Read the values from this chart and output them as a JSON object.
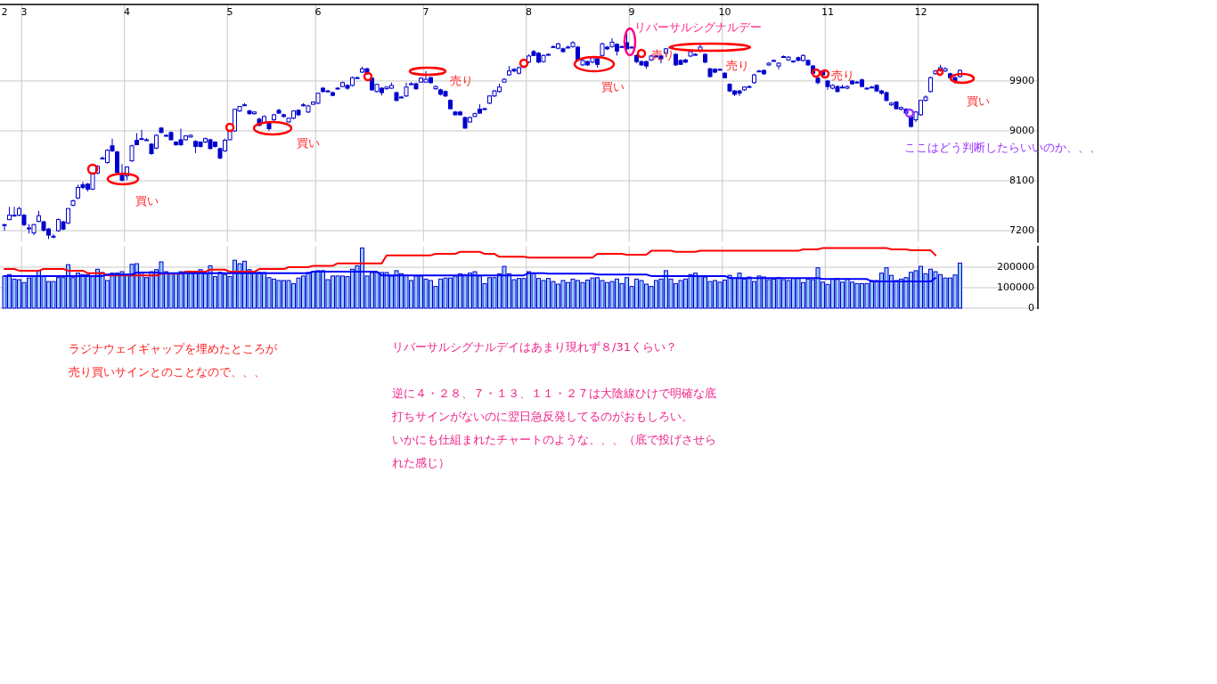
{
  "chart_data": [
    {
      "type": "candlestick",
      "categories": [
        "2",
        null,
        null,
        null,
        "3",
        null,
        null,
        null,
        null,
        null,
        null,
        null,
        null,
        null,
        null,
        null,
        null,
        null,
        null,
        null,
        null,
        null,
        null,
        null,
        null,
        "4",
        null,
        null,
        null,
        null,
        null,
        null,
        null,
        null,
        null,
        null,
        null,
        null,
        null,
        null,
        null,
        null,
        null,
        null,
        null,
        null,
        "5",
        null,
        null,
        null,
        null,
        null,
        null,
        null,
        null,
        null,
        null,
        null,
        null,
        null,
        null,
        null,
        null,
        null,
        "6",
        null,
        null,
        null,
        null,
        null,
        null,
        null,
        null,
        null,
        null,
        null,
        null,
        null,
        null,
        null,
        null,
        null,
        null,
        null,
        null,
        null,
        "7",
        null,
        null,
        null,
        null,
        null,
        null,
        null,
        null,
        null,
        null,
        null,
        null,
        null,
        null,
        null,
        null,
        null,
        null,
        null,
        null,
        "8",
        null,
        null,
        null,
        null,
        null,
        null,
        null,
        null,
        null,
        null,
        null,
        null,
        null,
        null,
        null,
        null,
        null,
        null,
        null,
        null,
        "9",
        null,
        null,
        null,
        null,
        null,
        null,
        null,
        null,
        null,
        null,
        null,
        null,
        null,
        null,
        null,
        null,
        null,
        null,
        "10",
        null,
        null,
        null,
        null,
        null,
        null,
        null,
        null,
        null,
        null,
        null,
        null,
        null,
        null,
        null,
        null,
        null,
        null,
        null,
        null,
        "11",
        null,
        null,
        null,
        null,
        null,
        null,
        null,
        null,
        null,
        null,
        null,
        null,
        null,
        null,
        null,
        null,
        null,
        null,
        "12",
        null,
        null,
        null,
        null,
        null,
        null,
        null,
        null
      ],
      "ohlc": [
        [
          7310,
          7320,
          7200,
          7300
        ],
        [
          7400,
          7630,
          7390,
          7480
        ],
        [
          7480,
          7630,
          7460,
          7480
        ],
        [
          7480,
          7630,
          7460,
          7600
        ],
        [
          7480,
          7500,
          7280,
          7310
        ],
        [
          7240,
          7320,
          7150,
          7250
        ],
        [
          7160,
          7320,
          7120,
          7310
        ],
        [
          7370,
          7560,
          7350,
          7470
        ],
        [
          7360,
          7380,
          7180,
          7210
        ],
        [
          7230,
          7250,
          7050,
          7120
        ],
        [
          7100,
          7140,
          7060,
          7100
        ],
        [
          7200,
          7420,
          7180,
          7400
        ],
        [
          7360,
          7380,
          7210,
          7230
        ],
        [
          7340,
          7600,
          7320,
          7600
        ],
        [
          7660,
          7760,
          7640,
          7740
        ],
        [
          7790,
          8030,
          7770,
          7980
        ],
        [
          8030,
          8080,
          7950,
          7980
        ],
        [
          8040,
          8060,
          7910,
          7950
        ],
        [
          7950,
          8240,
          7930,
          8240
        ],
        [
          8240,
          8380,
          8220,
          8360
        ],
        [
          8510,
          8540,
          8490,
          8510
        ],
        [
          8430,
          8670,
          8410,
          8650
        ],
        [
          8730,
          8860,
          8620,
          8640
        ],
        [
          8620,
          8640,
          8230,
          8250
        ],
        [
          8200,
          8400,
          8090,
          8110
        ],
        [
          8190,
          8360,
          8110,
          8350
        ],
        [
          8460,
          8750,
          8440,
          8730
        ],
        [
          8830,
          8960,
          8750,
          8750
        ],
        [
          8860,
          9020,
          8840,
          8860
        ],
        [
          8840,
          8870,
          8830,
          8840
        ],
        [
          8760,
          8780,
          8570,
          8590
        ],
        [
          8690,
          8940,
          8670,
          8920
        ],
        [
          9050,
          9070,
          8960,
          8970
        ],
        [
          8920,
          8940,
          8900,
          8920
        ],
        [
          8970,
          8990,
          8830,
          8840
        ],
        [
          8800,
          8810,
          8730,
          8750
        ],
        [
          8840,
          9040,
          8730,
          8750
        ],
        [
          8840,
          8920,
          8830,
          8910
        ],
        [
          8890,
          8940,
          8880,
          8920
        ],
        [
          8810,
          8830,
          8600,
          8720
        ],
        [
          8800,
          8810,
          8700,
          8720
        ],
        [
          8800,
          8880,
          8780,
          8860
        ],
        [
          8840,
          8860,
          8670,
          8680
        ],
        [
          8800,
          8810,
          8700,
          8720
        ],
        [
          8680,
          8700,
          8490,
          8510
        ],
        [
          8640,
          8860,
          8620,
          8830
        ],
        [
          8840,
          9000,
          8830,
          8990
        ],
        [
          9000,
          9390,
          8980,
          9390
        ],
        [
          9360,
          9450,
          9340,
          9440
        ],
        [
          9470,
          9500,
          9450,
          9470
        ],
        [
          9360,
          9380,
          9290,
          9310
        ],
        [
          9310,
          9350,
          9290,
          9340
        ],
        [
          9210,
          9240,
          9080,
          9100
        ],
        [
          9150,
          9280,
          9130,
          9260
        ],
        [
          9150,
          9170,
          9000,
          9040
        ],
        [
          9200,
          9310,
          9180,
          9290
        ],
        [
          9370,
          9400,
          9310,
          9320
        ],
        [
          9290,
          9310,
          9240,
          9260
        ],
        [
          9160,
          9240,
          9150,
          9230
        ],
        [
          9230,
          9370,
          9210,
          9360
        ],
        [
          9370,
          9390,
          9270,
          9290
        ],
        [
          9470,
          9500,
          9440,
          9470
        ],
        [
          9340,
          9470,
          9320,
          9450
        ],
        [
          9480,
          9530,
          9470,
          9520
        ],
        [
          9500,
          9690,
          9480,
          9680
        ],
        [
          9770,
          9790,
          9690,
          9710
        ],
        [
          9720,
          9740,
          9700,
          9720
        ],
        [
          9690,
          9710,
          9630,
          9640
        ],
        [
          9770,
          9790,
          9750,
          9770
        ],
        [
          9800,
          9890,
          9790,
          9870
        ],
        [
          9820,
          9840,
          9740,
          9770
        ],
        [
          9820,
          9980,
          9800,
          9960
        ],
        [
          9960,
          9980,
          9950,
          9960
        ],
        [
          10060,
          10160,
          10040,
          10120
        ],
        [
          10120,
          10140,
          10010,
          10030
        ],
        [
          9950,
          9970,
          9720,
          9740
        ],
        [
          9710,
          9850,
          9690,
          9840
        ],
        [
          9770,
          9790,
          9640,
          9690
        ],
        [
          9760,
          9810,
          9740,
          9790
        ],
        [
          9770,
          9870,
          9760,
          9820
        ],
        [
          9690,
          9710,
          9530,
          9550
        ],
        [
          9610,
          9630,
          9600,
          9610
        ],
        [
          9630,
          9870,
          9610,
          9790
        ],
        [
          9850,
          9880,
          9830,
          9850
        ],
        [
          9850,
          9870,
          9740,
          9760
        ],
        [
          9880,
          9970,
          9870,
          9950
        ],
        [
          9880,
          10080,
          9870,
          9930
        ],
        [
          9960,
          9980,
          9850,
          9870
        ],
        [
          9760,
          9820,
          9740,
          9800
        ],
        [
          9740,
          9760,
          9640,
          9660
        ],
        [
          9710,
          9730,
          9610,
          9630
        ],
        [
          9550,
          9570,
          9390,
          9400
        ],
        [
          9340,
          9360,
          9280,
          9290
        ],
        [
          9340,
          9360,
          9280,
          9290
        ],
        [
          9240,
          9260,
          9040,
          9050
        ],
        [
          9160,
          9260,
          9150,
          9240
        ],
        [
          9260,
          9330,
          9250,
          9310
        ],
        [
          9390,
          9480,
          9310,
          9320
        ],
        [
          9400,
          9420,
          9390,
          9400
        ],
        [
          9500,
          9640,
          9480,
          9630
        ],
        [
          9630,
          9740,
          9610,
          9720
        ],
        [
          9710,
          9850,
          9690,
          9790
        ],
        [
          9880,
          9950,
          9870,
          9930
        ],
        [
          10010,
          10170,
          9990,
          10080
        ],
        [
          10110,
          10130,
          10060,
          10080
        ],
        [
          10040,
          10160,
          10020,
          10140
        ],
        [
          10160,
          10180,
          10140,
          10160
        ],
        [
          10240,
          10380,
          10220,
          10350
        ],
        [
          10430,
          10460,
          10350,
          10360
        ],
        [
          10400,
          10420,
          10220,
          10240
        ],
        [
          10250,
          10380,
          10230,
          10360
        ],
        [
          10380,
          10400,
          10360,
          10380
        ],
        [
          10520,
          10540,
          10500,
          10520
        ],
        [
          10490,
          10590,
          10470,
          10570
        ],
        [
          10480,
          10500,
          10410,
          10430
        ],
        [
          10510,
          10540,
          10490,
          10510
        ],
        [
          10520,
          10620,
          10500,
          10590
        ],
        [
          10510,
          10530,
          10270,
          10280
        ],
        [
          10190,
          10290,
          10170,
          10270
        ],
        [
          10250,
          10270,
          10170,
          10190
        ],
        [
          10240,
          10340,
          10220,
          10320
        ],
        [
          10300,
          10320,
          10140,
          10200
        ],
        [
          10360,
          10590,
          10340,
          10570
        ],
        [
          10510,
          10530,
          10460,
          10480
        ],
        [
          10520,
          10670,
          10500,
          10600
        ],
        [
          10560,
          10580,
          10360,
          10440
        ],
        [
          10520,
          10540,
          10500,
          10520
        ],
        [
          10590,
          10780,
          10460,
          10480
        ],
        [
          10510,
          10530,
          10490,
          10510
        ],
        [
          10360,
          10380,
          10220,
          10250
        ],
        [
          10250,
          10270,
          10170,
          10190
        ],
        [
          10250,
          10270,
          10120,
          10170
        ],
        [
          10280,
          10370,
          10260,
          10350
        ],
        [
          10350,
          10370,
          10330,
          10350
        ],
        [
          10350,
          10370,
          10220,
          10300
        ],
        [
          10400,
          10490,
          10380,
          10480
        ],
        [
          10510,
          10530,
          10490,
          10510
        ],
        [
          10380,
          10400,
          10170,
          10190
        ],
        [
          10270,
          10290,
          10190,
          10200
        ],
        [
          10280,
          10300,
          10220,
          10240
        ],
        [
          10350,
          10440,
          10330,
          10430
        ],
        [
          10380,
          10400,
          10360,
          10380
        ],
        [
          10440,
          10560,
          10420,
          10510
        ],
        [
          10380,
          10400,
          10220,
          10240
        ],
        [
          10120,
          10140,
          9960,
          9980
        ],
        [
          10110,
          10130,
          10040,
          10060
        ],
        [
          10110,
          10130,
          10090,
          10110
        ],
        [
          10040,
          10060,
          9950,
          9960
        ],
        [
          9840,
          9860,
          9700,
          9720
        ],
        [
          9720,
          9740,
          9630,
          9660
        ],
        [
          9720,
          9740,
          9630,
          9680
        ],
        [
          9740,
          9800,
          9720,
          9790
        ],
        [
          9800,
          9820,
          9780,
          9800
        ],
        [
          9870,
          10030,
          9850,
          10010
        ],
        [
          10080,
          10100,
          10060,
          10080
        ],
        [
          10090,
          10110,
          10010,
          10030
        ],
        [
          10190,
          10240,
          10170,
          10220
        ],
        [
          10270,
          10290,
          10250,
          10270
        ],
        [
          10170,
          10240,
          10110,
          10220
        ],
        [
          10340,
          10360,
          10320,
          10330
        ],
        [
          10280,
          10350,
          10260,
          10330
        ],
        [
          10260,
          10270,
          10230,
          10250
        ],
        [
          10320,
          10340,
          10260,
          10270
        ],
        [
          10270,
          10380,
          10250,
          10360
        ],
        [
          10270,
          10290,
          10170,
          10190
        ],
        [
          10170,
          10190,
          10030,
          10040
        ],
        [
          9950,
          9970,
          9840,
          9870
        ],
        [
          10080,
          10100,
          9990,
          10010
        ],
        [
          9900,
          9920,
          9740,
          9800
        ],
        [
          9770,
          9840,
          9750,
          9820
        ],
        [
          9800,
          9820,
          9690,
          9710
        ],
        [
          9790,
          9830,
          9770,
          9790
        ],
        [
          9770,
          9820,
          9750,
          9800
        ],
        [
          9900,
          9920,
          9830,
          9850
        ],
        [
          9880,
          9900,
          9860,
          9880
        ],
        [
          9920,
          9940,
          9790,
          9800
        ],
        [
          9770,
          9790,
          9750,
          9770
        ],
        [
          9790,
          9810,
          9770,
          9790
        ],
        [
          9820,
          9840,
          9700,
          9720
        ],
        [
          9720,
          9740,
          9650,
          9680
        ],
        [
          9690,
          9710,
          9530,
          9550
        ],
        [
          9470,
          9520,
          9450,
          9500
        ],
        [
          9520,
          9540,
          9390,
          9400
        ],
        [
          9390,
          9440,
          9370,
          9420
        ],
        [
          9390,
          9410,
          9300,
          9320
        ],
        [
          9260,
          9280,
          9060,
          9080
        ],
        [
          9200,
          9360,
          9160,
          9340
        ],
        [
          9290,
          9550,
          9270,
          9550
        ],
        [
          9550,
          9640,
          9530,
          9610
        ],
        [
          9710,
          9980,
          9690,
          9960
        ],
        [
          10030,
          10100,
          10010,
          10080
        ],
        [
          10090,
          10190,
          10070,
          10140
        ],
        [
          10080,
          10150,
          10060,
          10120
        ],
        [
          10030,
          10050,
          9950,
          9960
        ],
        [
          9960,
          9980,
          9850,
          9900
        ],
        [
          9980,
          10110,
          9960,
          10090
        ]
      ],
      "ylim": [
        7000,
        11280
      ],
      "yticks": [
        7200,
        8100,
        9000,
        9900
      ],
      "grid": true,
      "annotations": [
        "買い",
        "買い",
        "売り",
        "買い",
        "リバーサルシグナルデー",
        "売り",
        "売り",
        "売り",
        "買い",
        "ここはどう判断したらいいのか、、、",
        "ラジナウェイギャップを埋めたところが",
        "売り買いサインとのことなので、、、",
        "リバーサルシグナルデイはあまり現れず８/31くらい？",
        "逆に４・２８、７・１３、１１・２７は大陰線ひけで明確な底",
        "打ちサインがないのに翌日急反発してるのがおもしろい。",
        "いかにも仕組まれたチャートのような、、、（底で投げさせら",
        "れた感じ）"
      ]
    },
    {
      "type": "bar",
      "categories": [
        "2",
        null,
        null,
        null,
        "3",
        null,
        null,
        null,
        null,
        null,
        null,
        null,
        null,
        null,
        null,
        null,
        null,
        null,
        null,
        null,
        null,
        null,
        null,
        null,
        null,
        "4",
        null,
        null,
        null,
        null,
        null,
        null,
        null,
        null,
        null,
        null,
        null,
        null,
        null,
        null,
        null,
        null,
        null,
        null,
        null,
        null,
        "5",
        null,
        null,
        null,
        null,
        null,
        null,
        null,
        null,
        null,
        null,
        null,
        null,
        null,
        null,
        null,
        null,
        null,
        "6",
        null,
        null,
        null,
        null,
        null,
        null,
        null,
        null,
        null,
        null,
        null,
        null,
        null,
        null,
        null,
        null,
        null,
        null,
        null,
        null,
        null,
        "7",
        null,
        null,
        null,
        null,
        null,
        null,
        null,
        null,
        null,
        null,
        null,
        null,
        null,
        null,
        null,
        null,
        null,
        null,
        null,
        null,
        "8",
        null,
        null,
        null,
        null,
        null,
        null,
        null,
        null,
        null,
        null,
        null,
        null,
        null,
        null,
        null,
        null,
        null,
        null,
        null,
        null,
        "9",
        null,
        null,
        null,
        null,
        null,
        null,
        null,
        null,
        null,
        null,
        null,
        null,
        null,
        null,
        null,
        null,
        null,
        null,
        "10",
        null,
        null,
        null,
        null,
        null,
        null,
        null,
        null,
        null,
        null,
        null,
        null,
        null,
        null,
        null,
        null,
        null,
        null,
        null,
        null,
        "11",
        null,
        null,
        null,
        null,
        null,
        null,
        null,
        null,
        null,
        null,
        null,
        null,
        null,
        null,
        null,
        null,
        null,
        null,
        "12",
        null,
        null,
        null,
        null,
        null,
        null,
        null,
        null
      ],
      "series": [
        {
          "type": "bar",
          "color": "#99ccff",
          "values": [
            157000,
            164000,
            142000,
            139000,
            125000,
            147000,
            157000,
            183000,
            157000,
            130000,
            130000,
            149000,
            149000,
            212000,
            149000,
            171000,
            164000,
            164000,
            154000,
            190000,
            174000,
            135000,
            171000,
            171000,
            178000,
            164000,
            214000,
            217000,
            171000,
            149000,
            178000,
            188000,
            226000,
            178000,
            171000,
            171000,
            178000,
            178000,
            171000,
            171000,
            188000,
            171000,
            207000,
            154000,
            175000,
            164000,
            154000,
            234000,
            217000,
            229000,
            188000,
            175000,
            175000,
            174000,
            149000,
            142000,
            135000,
            135000,
            135000,
            120000,
            147000,
            157000,
            174000,
            178000,
            183000,
            183000,
            139000,
            157000,
            157000,
            157000,
            154000,
            190000,
            207000,
            294000,
            157000,
            174000,
            174000,
            174000,
            174000,
            157000,
            183000,
            168000,
            160000,
            135000,
            157000,
            157000,
            142000,
            135000,
            106000,
            142000,
            147000,
            147000,
            157000,
            168000,
            164000,
            171000,
            178000,
            157000,
            120000,
            149000,
            149000,
            168000,
            204000,
            168000,
            139000,
            145000,
            145000,
            178000,
            168000,
            145000,
            135000,
            145000,
            130000,
            117000,
            135000,
            125000,
            142000,
            135000,
            125000,
            137000,
            147000,
            149000,
            135000,
            125000,
            130000,
            142000,
            120000,
            149000,
            106000,
            142000,
            135000,
            117000,
            106000,
            135000,
            142000,
            183000,
            142000,
            120000,
            135000,
            142000,
            164000,
            171000,
            157000,
            152000,
            130000,
            135000,
            127000,
            137000,
            160000,
            147000,
            171000,
            142000,
            152000,
            130000,
            157000,
            152000,
            139000,
            142000,
            149000,
            139000,
            135000,
            145000,
            145000,
            125000,
            142000,
            139000,
            197000,
            127000,
            116000,
            142000,
            145000,
            127000,
            142000,
            127000,
            120000,
            120000,
            120000,
            135000,
            135000,
            171000,
            197000,
            160000,
            135000,
            142000,
            149000,
            175000,
            183000,
            204000,
            168000,
            190000,
            178000,
            164000,
            147000,
            147000,
            162000,
            220000
          ]
        },
        {
          "type": "line",
          "color": "#ff0000",
          "values": [
            191000,
            191000,
            191000,
            183000,
            183000,
            183000,
            183000,
            183000,
            191000,
            191000,
            191000,
            191000,
            191000,
            183000,
            183000,
            183000,
            183000,
            171000,
            171000,
            171000,
            171000,
            160000,
            160000,
            160000,
            160000,
            160000,
            160000,
            160000,
            160000,
            160000,
            160000,
            160000,
            168000,
            168000,
            168000,
            168000,
            168000,
            178000,
            178000,
            178000,
            178000,
            178000,
            188000,
            188000,
            188000,
            188000,
            178000,
            178000,
            178000,
            178000,
            178000,
            178000,
            191000,
            191000,
            191000,
            191000,
            191000,
            191000,
            200000,
            200000,
            200000,
            200000,
            200000,
            207000,
            207000,
            207000,
            207000,
            207000,
            219000,
            219000,
            219000,
            219000,
            219000,
            219000,
            219000,
            219000,
            219000,
            219000,
            258000,
            258000,
            258000,
            258000,
            258000,
            258000,
            258000,
            258000,
            258000,
            258000,
            265000,
            265000,
            265000,
            265000,
            265000,
            275000,
            275000,
            275000,
            275000,
            275000,
            265000,
            265000,
            265000,
            251000,
            251000,
            251000,
            251000,
            251000,
            251000,
            247000,
            247000,
            247000,
            247000,
            247000,
            247000,
            247000,
            247000,
            247000,
            247000,
            247000,
            247000,
            247000,
            247000,
            265000,
            265000,
            265000,
            265000,
            265000,
            265000,
            261000,
            261000,
            261000,
            261000,
            261000,
            280000,
            280000,
            280000,
            280000,
            280000,
            275000,
            275000,
            275000,
            275000,
            275000,
            280000,
            280000,
            280000,
            280000,
            280000,
            280000,
            280000,
            280000,
            280000,
            280000,
            280000,
            280000,
            280000,
            280000,
            280000,
            280000,
            280000,
            280000,
            280000,
            280000,
            280000,
            287000,
            287000,
            287000,
            287000,
            294000,
            294000,
            294000,
            294000,
            294000,
            294000,
            294000,
            294000,
            294000,
            294000,
            294000,
            294000,
            294000,
            294000,
            287000,
            287000,
            287000,
            287000,
            283000,
            283000,
            283000,
            283000,
            283000,
            258000,
            null,
            null,
            null,
            null,
            null
          ]
        },
        {
          "type": "line",
          "color": "#0000ff",
          "values": [
            157000,
            157000,
            157000,
            157000,
            157000,
            157000,
            157000,
            157000,
            157000,
            157000,
            157000,
            157000,
            157000,
            157000,
            157000,
            157000,
            157000,
            157000,
            157000,
            157000,
            157000,
            164000,
            164000,
            164000,
            164000,
            164000,
            164000,
            174000,
            174000,
            174000,
            174000,
            174000,
            171000,
            171000,
            171000,
            171000,
            171000,
            171000,
            171000,
            171000,
            171000,
            171000,
            171000,
            171000,
            171000,
            171000,
            171000,
            171000,
            171000,
            171000,
            171000,
            171000,
            171000,
            171000,
            171000,
            171000,
            171000,
            171000,
            171000,
            171000,
            171000,
            171000,
            171000,
            178000,
            178000,
            178000,
            178000,
            178000,
            178000,
            178000,
            178000,
            178000,
            178000,
            178000,
            178000,
            178000,
            178000,
            160000,
            160000,
            160000,
            160000,
            160000,
            160000,
            160000,
            160000,
            160000,
            160000,
            160000,
            160000,
            160000,
            160000,
            160000,
            160000,
            160000,
            160000,
            160000,
            160000,
            160000,
            160000,
            160000,
            160000,
            160000,
            160000,
            160000,
            160000,
            160000,
            160000,
            171000,
            171000,
            171000,
            171000,
            168000,
            168000,
            168000,
            168000,
            168000,
            168000,
            168000,
            168000,
            168000,
            168000,
            164000,
            164000,
            164000,
            164000,
            164000,
            164000,
            164000,
            164000,
            164000,
            164000,
            164000,
            157000,
            157000,
            157000,
            157000,
            157000,
            157000,
            157000,
            157000,
            157000,
            157000,
            157000,
            157000,
            157000,
            157000,
            157000,
            157000,
            147000,
            147000,
            147000,
            147000,
            147000,
            147000,
            147000,
            147000,
            147000,
            147000,
            147000,
            147000,
            147000,
            147000,
            147000,
            147000,
            147000,
            147000,
            147000,
            142000,
            142000,
            142000,
            142000,
            142000,
            142000,
            142000,
            142000,
            142000,
            142000,
            130000,
            130000,
            130000,
            130000,
            130000,
            130000,
            130000,
            130000,
            130000,
            130000,
            130000,
            130000,
            130000,
            147000,
            null,
            null,
            null,
            null,
            null
          ]
        }
      ],
      "ylim": [
        0,
        300000
      ],
      "yticks": [
        0,
        100000,
        200000
      ],
      "grid": true,
      "tick_labels": "y"
    }
  ]
}
